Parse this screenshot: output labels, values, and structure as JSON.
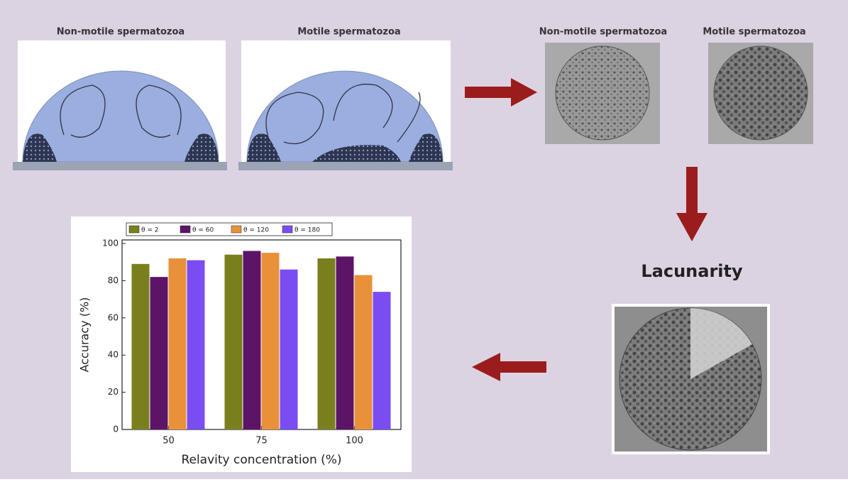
{
  "panels": {
    "left_labels": [
      "Non-motile spermatozoa",
      "Motile spermatozoa"
    ],
    "right_labels": [
      "Non-motile spermatozoa",
      "Motile spermatozoa"
    ],
    "lacunarity": "Lacunarity"
  },
  "chart_data": {
    "type": "bar",
    "x_label": "Relavity concentration (%)",
    "y_label": "Accuracy (%)",
    "categories": [
      "50",
      "75",
      "100"
    ],
    "series": [
      {
        "name": "θ = 2",
        "color": "#7a7f1e",
        "values": [
          89,
          94,
          92
        ]
      },
      {
        "name": "θ = 60",
        "color": "#5b1466",
        "values": [
          82,
          96,
          93
        ]
      },
      {
        "name": "θ = 120",
        "color": "#e8913a",
        "values": [
          92,
          95,
          83
        ]
      },
      {
        "name": "θ = 180",
        "color": "#7a4df2",
        "values": [
          91,
          86,
          74
        ]
      }
    ],
    "ylim": [
      0,
      100
    ],
    "yticks": [
      0,
      20,
      40,
      60,
      80,
      100
    ]
  }
}
